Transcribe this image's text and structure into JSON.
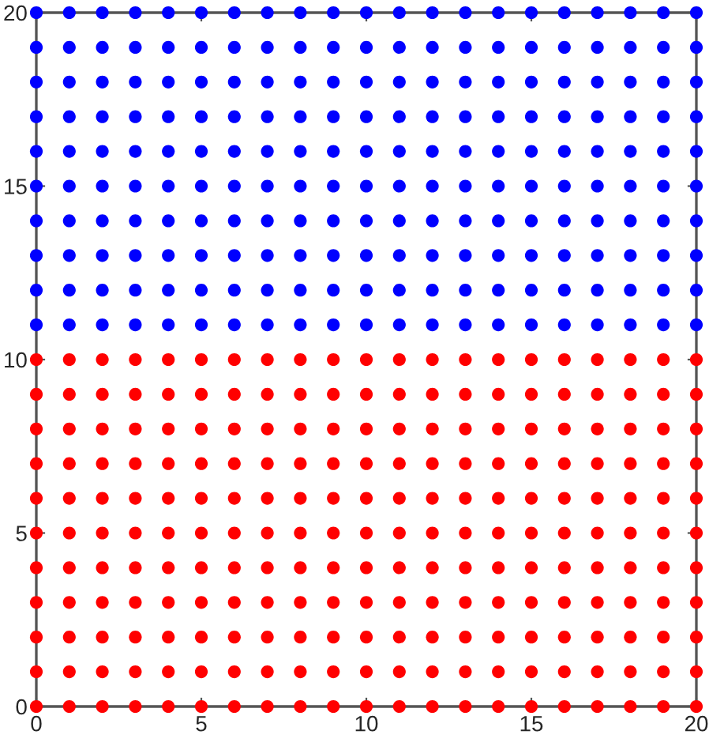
{
  "chart_data": {
    "type": "scatter",
    "xlim": [
      0,
      20
    ],
    "ylim": [
      0,
      20
    ],
    "xticks": [
      0,
      5,
      10,
      15,
      20
    ],
    "yticks": [
      0,
      5,
      10,
      15,
      20
    ],
    "grid": false,
    "legend": false,
    "marker": "circle",
    "series": [
      {
        "color": "#ff0000",
        "x": [
          0,
          1,
          2,
          3,
          4,
          5,
          6,
          7,
          8,
          9,
          10,
          11,
          12,
          13,
          14,
          15,
          16,
          17,
          18,
          19,
          20,
          0,
          1,
          2,
          3,
          4,
          5,
          6,
          7,
          8,
          9,
          10,
          11,
          12,
          13,
          14,
          15,
          16,
          17,
          18,
          19,
          20,
          0,
          1,
          2,
          3,
          4,
          5,
          6,
          7,
          8,
          9,
          10,
          11,
          12,
          13,
          14,
          15,
          16,
          17,
          18,
          19,
          20,
          0,
          1,
          2,
          3,
          4,
          5,
          6,
          7,
          8,
          9,
          10,
          11,
          12,
          13,
          14,
          15,
          16,
          17,
          18,
          19,
          20,
          0,
          1,
          2,
          3,
          4,
          5,
          6,
          7,
          8,
          9,
          10,
          11,
          12,
          13,
          14,
          15,
          16,
          17,
          18,
          19,
          20,
          0,
          1,
          2,
          3,
          4,
          5,
          6,
          7,
          8,
          9,
          10,
          11,
          12,
          13,
          14,
          15,
          16,
          17,
          18,
          19,
          20,
          0,
          1,
          2,
          3,
          4,
          5,
          6,
          7,
          8,
          9,
          10,
          11,
          12,
          13,
          14,
          15,
          16,
          17,
          18,
          19,
          20,
          0,
          1,
          2,
          3,
          4,
          5,
          6,
          7,
          8,
          9,
          10,
          11,
          12,
          13,
          14,
          15,
          16,
          17,
          18,
          19,
          20,
          0,
          1,
          2,
          3,
          4,
          5,
          6,
          7,
          8,
          9,
          10,
          11,
          12,
          13,
          14,
          15,
          16,
          17,
          18,
          19,
          20,
          0,
          1,
          2,
          3,
          4,
          5,
          6,
          7,
          8,
          9,
          10,
          11,
          12,
          13,
          14,
          15,
          16,
          17,
          18,
          19,
          20,
          0,
          1,
          2,
          3,
          4,
          5,
          6,
          7,
          8,
          9,
          10,
          11,
          12,
          13,
          14,
          15,
          16,
          17,
          18,
          19,
          20
        ],
        "values": [
          0,
          0,
          0,
          0,
          0,
          0,
          0,
          0,
          0,
          0,
          0,
          0,
          0,
          0,
          0,
          0,
          0,
          0,
          0,
          0,
          0,
          1,
          1,
          1,
          1,
          1,
          1,
          1,
          1,
          1,
          1,
          1,
          1,
          1,
          1,
          1,
          1,
          1,
          1,
          1,
          1,
          1,
          2,
          2,
          2,
          2,
          2,
          2,
          2,
          2,
          2,
          2,
          2,
          2,
          2,
          2,
          2,
          2,
          2,
          2,
          2,
          2,
          2,
          3,
          3,
          3,
          3,
          3,
          3,
          3,
          3,
          3,
          3,
          3,
          3,
          3,
          3,
          3,
          3,
          3,
          3,
          3,
          3,
          3,
          4,
          4,
          4,
          4,
          4,
          4,
          4,
          4,
          4,
          4,
          4,
          4,
          4,
          4,
          4,
          4,
          4,
          4,
          4,
          4,
          4,
          5,
          5,
          5,
          5,
          5,
          5,
          5,
          5,
          5,
          5,
          5,
          5,
          5,
          5,
          5,
          5,
          5,
          5,
          5,
          5,
          5,
          6,
          6,
          6,
          6,
          6,
          6,
          6,
          6,
          6,
          6,
          6,
          6,
          6,
          6,
          6,
          6,
          6,
          6,
          6,
          6,
          6,
          7,
          7,
          7,
          7,
          7,
          7,
          7,
          7,
          7,
          7,
          7,
          7,
          7,
          7,
          7,
          7,
          7,
          7,
          7,
          7,
          7,
          8,
          8,
          8,
          8,
          8,
          8,
          8,
          8,
          8,
          8,
          8,
          8,
          8,
          8,
          8,
          8,
          8,
          8,
          8,
          8,
          8,
          9,
          9,
          9,
          9,
          9,
          9,
          9,
          9,
          9,
          9,
          9,
          9,
          9,
          9,
          9,
          9,
          9,
          9,
          9,
          9,
          9,
          10,
          10,
          10,
          10,
          10,
          10,
          10,
          10,
          10,
          10,
          10,
          10,
          10,
          10,
          10,
          10,
          10,
          10,
          10,
          10,
          10
        ]
      },
      {
        "color": "#0000ff",
        "x": [
          0,
          1,
          2,
          3,
          4,
          5,
          6,
          7,
          8,
          9,
          10,
          11,
          12,
          13,
          14,
          15,
          16,
          17,
          18,
          19,
          20,
          0,
          1,
          2,
          3,
          4,
          5,
          6,
          7,
          8,
          9,
          10,
          11,
          12,
          13,
          14,
          15,
          16,
          17,
          18,
          19,
          20,
          0,
          1,
          2,
          3,
          4,
          5,
          6,
          7,
          8,
          9,
          10,
          11,
          12,
          13,
          14,
          15,
          16,
          17,
          18,
          19,
          20,
          0,
          1,
          2,
          3,
          4,
          5,
          6,
          7,
          8,
          9,
          10,
          11,
          12,
          13,
          14,
          15,
          16,
          17,
          18,
          19,
          20,
          0,
          1,
          2,
          3,
          4,
          5,
          6,
          7,
          8,
          9,
          10,
          11,
          12,
          13,
          14,
          15,
          16,
          17,
          18,
          19,
          20,
          0,
          1,
          2,
          3,
          4,
          5,
          6,
          7,
          8,
          9,
          10,
          11,
          12,
          13,
          14,
          15,
          16,
          17,
          18,
          19,
          20,
          0,
          1,
          2,
          3,
          4,
          5,
          6,
          7,
          8,
          9,
          10,
          11,
          12,
          13,
          14,
          15,
          16,
          17,
          18,
          19,
          20,
          0,
          1,
          2,
          3,
          4,
          5,
          6,
          7,
          8,
          9,
          10,
          11,
          12,
          13,
          14,
          15,
          16,
          17,
          18,
          19,
          20,
          0,
          1,
          2,
          3,
          4,
          5,
          6,
          7,
          8,
          9,
          10,
          11,
          12,
          13,
          14,
          15,
          16,
          17,
          18,
          19,
          20,
          0,
          1,
          2,
          3,
          4,
          5,
          6,
          7,
          8,
          9,
          10,
          11,
          12,
          13,
          14,
          15,
          16,
          17,
          18,
          19,
          20
        ],
        "values": [
          11,
          11,
          11,
          11,
          11,
          11,
          11,
          11,
          11,
          11,
          11,
          11,
          11,
          11,
          11,
          11,
          11,
          11,
          11,
          11,
          11,
          12,
          12,
          12,
          12,
          12,
          12,
          12,
          12,
          12,
          12,
          12,
          12,
          12,
          12,
          12,
          12,
          12,
          12,
          12,
          12,
          12,
          13,
          13,
          13,
          13,
          13,
          13,
          13,
          13,
          13,
          13,
          13,
          13,
          13,
          13,
          13,
          13,
          13,
          13,
          13,
          13,
          13,
          14,
          14,
          14,
          14,
          14,
          14,
          14,
          14,
          14,
          14,
          14,
          14,
          14,
          14,
          14,
          14,
          14,
          14,
          14,
          14,
          14,
          15,
          15,
          15,
          15,
          15,
          15,
          15,
          15,
          15,
          15,
          15,
          15,
          15,
          15,
          15,
          15,
          15,
          15,
          15,
          15,
          15,
          16,
          16,
          16,
          16,
          16,
          16,
          16,
          16,
          16,
          16,
          16,
          16,
          16,
          16,
          16,
          16,
          16,
          16,
          16,
          16,
          16,
          17,
          17,
          17,
          17,
          17,
          17,
          17,
          17,
          17,
          17,
          17,
          17,
          17,
          17,
          17,
          17,
          17,
          17,
          17,
          17,
          17,
          18,
          18,
          18,
          18,
          18,
          18,
          18,
          18,
          18,
          18,
          18,
          18,
          18,
          18,
          18,
          18,
          18,
          18,
          18,
          18,
          18,
          19,
          19,
          19,
          19,
          19,
          19,
          19,
          19,
          19,
          19,
          19,
          19,
          19,
          19,
          19,
          19,
          19,
          19,
          19,
          19,
          19,
          20,
          20,
          20,
          20,
          20,
          20,
          20,
          20,
          20,
          20,
          20,
          20,
          20,
          20,
          20,
          20,
          20,
          20,
          20,
          20,
          20
        ]
      }
    ]
  }
}
